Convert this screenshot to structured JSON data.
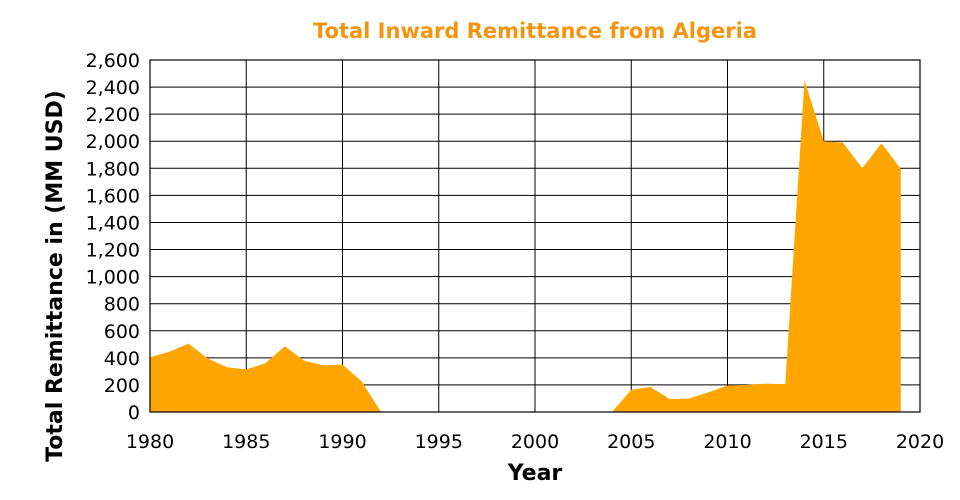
{
  "chart_data": {
    "type": "area",
    "title": "Total Inward Remittance from Algeria",
    "xlabel": "Year",
    "ylabel": "Total Remittance in (MM USD)",
    "xlim": [
      1980,
      2020
    ],
    "ylim": [
      0,
      2600
    ],
    "x_ticks": [
      "1980",
      "1985",
      "1990",
      "1995",
      "2000",
      "2005",
      "2010",
      "2015",
      "2020"
    ],
    "y_ticks": [
      "0",
      "200",
      "400",
      "600",
      "800",
      "1,000",
      "1,200",
      "1,400",
      "1,600",
      "1,800",
      "2,000",
      "2,200",
      "2,400",
      "2,600"
    ],
    "grid": true,
    "color": "#ffa500",
    "segments": [
      {
        "x": [
          1980,
          1981,
          1982,
          1983,
          1984,
          1985,
          1986,
          1987,
          1988,
          1989,
          1990,
          1991,
          1992
        ],
        "y": [
          405,
          445,
          505,
          395,
          330,
          315,
          360,
          485,
          380,
          345,
          350,
          225,
          0
        ]
      },
      {
        "x": [
          2004,
          2005,
          2006,
          2007,
          2008,
          2009,
          2010,
          2011,
          2012,
          2013,
          2014,
          2015,
          2016,
          2017,
          2018,
          2019
        ],
        "y": [
          0,
          165,
          185,
          95,
          100,
          145,
          195,
          200,
          210,
          205,
          2450,
          2000,
          1990,
          1800,
          1985,
          1795
        ]
      }
    ]
  }
}
